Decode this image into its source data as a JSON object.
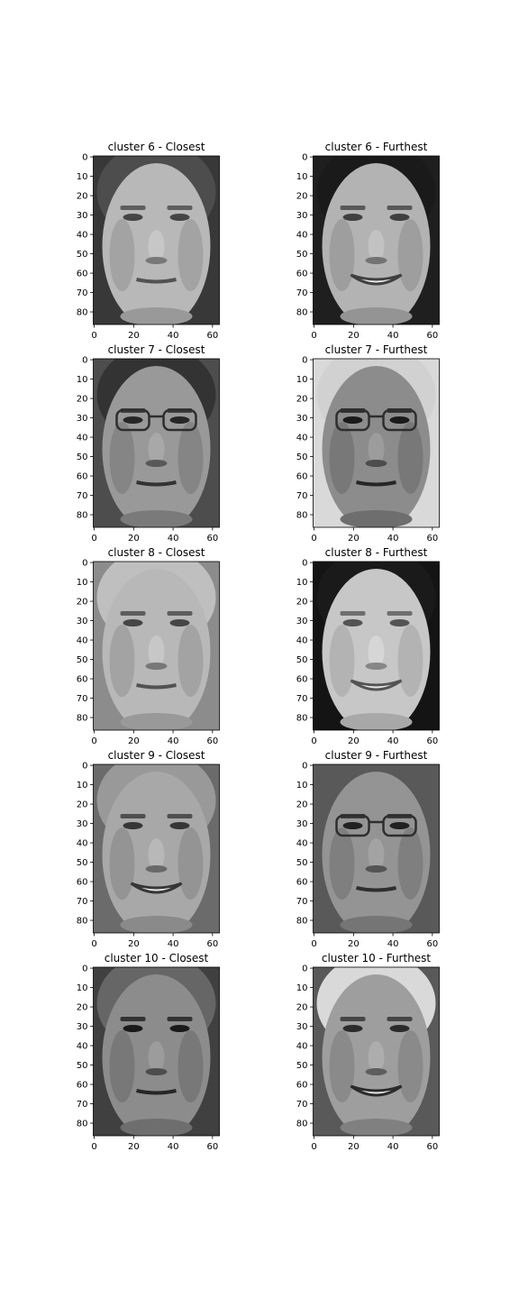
{
  "figure": {
    "background": "#ffffff"
  },
  "chart_data": [
    {
      "type": "heatmap",
      "cmap": "gray",
      "title": "cluster 6 - Closest",
      "xlim": [
        -0.5,
        63.5
      ],
      "ylim": [
        86.5,
        -0.5
      ],
      "xticks": [
        0,
        20,
        40,
        60
      ],
      "yticks": [
        0,
        10,
        20,
        30,
        40,
        50,
        60,
        70,
        80
      ],
      "face": {
        "skin": 0.72,
        "bg": 0.22,
        "hair": 0.3,
        "glasses": false,
        "smile": false
      }
    },
    {
      "type": "heatmap",
      "cmap": "gray",
      "title": "cluster 6 - Furthest",
      "xlim": [
        -0.5,
        63.5
      ],
      "ylim": [
        86.5,
        -0.5
      ],
      "xticks": [
        0,
        20,
        40,
        60
      ],
      "yticks": [
        0,
        10,
        20,
        30,
        40,
        50,
        60,
        70,
        80
      ],
      "face": {
        "skin": 0.7,
        "bg": 0.12,
        "hair": 0.1,
        "glasses": false,
        "smile": true
      }
    },
    {
      "type": "heatmap",
      "cmap": "gray",
      "title": "cluster 7 - Closest",
      "xlim": [
        -0.5,
        63.5
      ],
      "ylim": [
        86.5,
        -0.5
      ],
      "xticks": [
        0,
        20,
        40,
        60
      ],
      "yticks": [
        0,
        10,
        20,
        30,
        40,
        50,
        60,
        70,
        80
      ],
      "face": {
        "skin": 0.6,
        "bg": 0.3,
        "hair": 0.2,
        "glasses": true,
        "smile": false
      }
    },
    {
      "type": "heatmap",
      "cmap": "gray",
      "title": "cluster 7 - Furthest",
      "xlim": [
        -0.5,
        63.5
      ],
      "ylim": [
        86.5,
        -0.5
      ],
      "xticks": [
        0,
        20,
        40,
        60
      ],
      "yticks": [
        0,
        10,
        20,
        30,
        40,
        50,
        60,
        70,
        80
      ],
      "face": {
        "skin": 0.55,
        "bg": 0.85,
        "hair": 0.82,
        "glasses": true,
        "smile": false
      }
    },
    {
      "type": "heatmap",
      "cmap": "gray",
      "title": "cluster 8 - Closest",
      "xlim": [
        -0.5,
        63.5
      ],
      "ylim": [
        86.5,
        -0.5
      ],
      "xticks": [
        0,
        20,
        40,
        60
      ],
      "yticks": [
        0,
        10,
        20,
        30,
        40,
        50,
        60,
        70,
        80
      ],
      "face": {
        "skin": 0.72,
        "bg": 0.55,
        "hair": 0.75,
        "glasses": false,
        "smile": false
      }
    },
    {
      "type": "heatmap",
      "cmap": "gray",
      "title": "cluster 8 - Furthest",
      "xlim": [
        -0.5,
        63.5
      ],
      "ylim": [
        86.5,
        -0.5
      ],
      "xticks": [
        0,
        20,
        40,
        60
      ],
      "yticks": [
        0,
        10,
        20,
        30,
        40,
        50,
        60,
        70,
        80
      ],
      "face": {
        "skin": 0.78,
        "bg": 0.08,
        "hair": 0.1,
        "glasses": false,
        "smile": true
      }
    },
    {
      "type": "heatmap",
      "cmap": "gray",
      "title": "cluster 9 - Closest",
      "xlim": [
        -0.5,
        63.5
      ],
      "ylim": [
        86.5,
        -0.5
      ],
      "xticks": [
        0,
        20,
        40,
        60
      ],
      "yticks": [
        0,
        10,
        20,
        30,
        40,
        50,
        60,
        70,
        80
      ],
      "face": {
        "skin": 0.66,
        "bg": 0.42,
        "hair": 0.6,
        "glasses": false,
        "smile": true
      }
    },
    {
      "type": "heatmap",
      "cmap": "gray",
      "title": "cluster 9 - Furthest",
      "xlim": [
        -0.5,
        63.5
      ],
      "ylim": [
        86.5,
        -0.5
      ],
      "xticks": [
        0,
        20,
        40,
        60
      ],
      "yticks": [
        0,
        10,
        20,
        30,
        40,
        50,
        60,
        70,
        80
      ],
      "face": {
        "skin": 0.58,
        "bg": 0.35,
        "hair": 0.35,
        "glasses": true,
        "smile": false
      }
    },
    {
      "type": "heatmap",
      "cmap": "gray",
      "title": "cluster 10 - Closest",
      "xlim": [
        -0.5,
        63.5
      ],
      "ylim": [
        86.5,
        -0.5
      ],
      "xticks": [
        0,
        20,
        40,
        60
      ],
      "yticks": [
        0,
        10,
        20,
        30,
        40,
        50,
        60,
        70,
        80
      ],
      "face": {
        "skin": 0.55,
        "bg": 0.25,
        "hair": 0.4,
        "glasses": false,
        "smile": false
      }
    },
    {
      "type": "heatmap",
      "cmap": "gray",
      "title": "cluster 10 - Furthest",
      "xlim": [
        -0.5,
        63.5
      ],
      "ylim": [
        86.5,
        -0.5
      ],
      "xticks": [
        0,
        20,
        40,
        60
      ],
      "yticks": [
        0,
        10,
        20,
        30,
        40,
        50,
        60,
        70,
        80
      ],
      "face": {
        "skin": 0.62,
        "bg": 0.35,
        "hair": 0.85,
        "glasses": false,
        "smile": true
      }
    }
  ]
}
